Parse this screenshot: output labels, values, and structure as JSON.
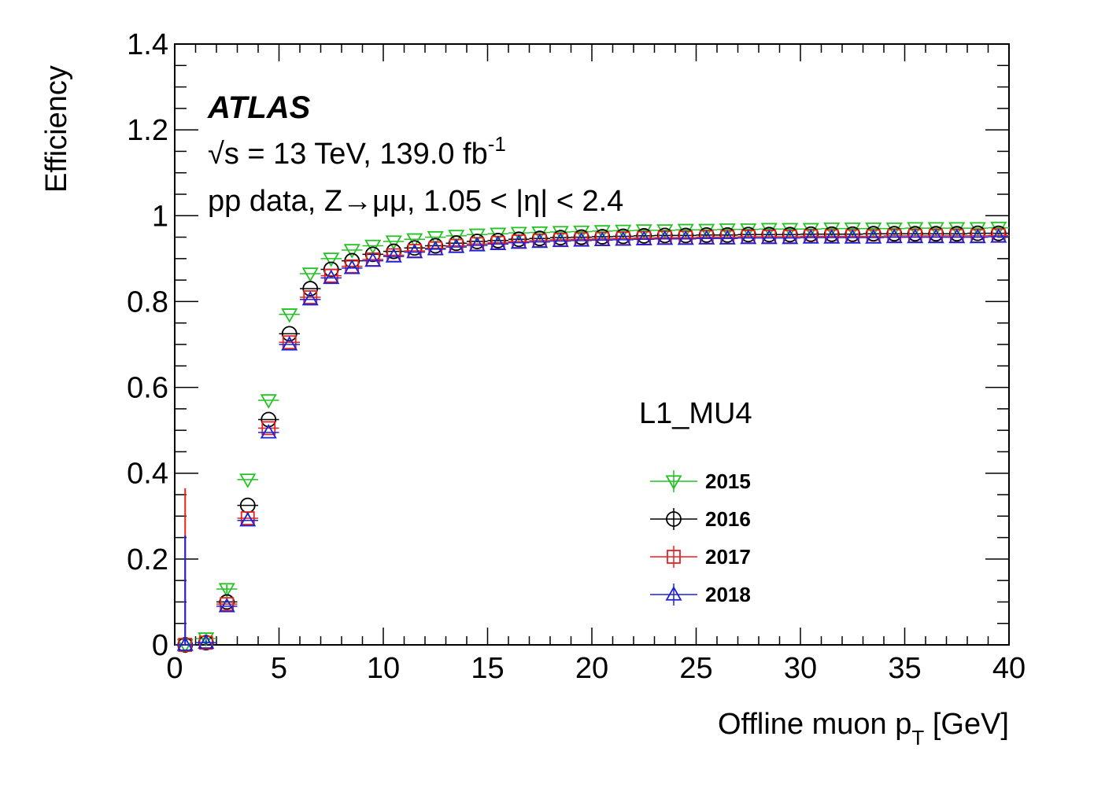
{
  "chart_data": {
    "type": "scatter",
    "xlabel": "Offline muon p",
    "xlabel_sub": "T",
    "xlabel_unit": " [GeV]",
    "ylabel": "Efficiency",
    "xlim": [
      0,
      40
    ],
    "ylim": [
      0,
      1.4
    ],
    "xticks": [
      "0",
      "5",
      "10",
      "15",
      "20",
      "25",
      "30",
      "35",
      "40"
    ],
    "yticks": [
      "0",
      "0.2",
      "0.4",
      "0.6",
      "0.8",
      "1",
      "1.2",
      "1.4"
    ],
    "experiment": "ATLAS",
    "sqrt_symbol": "√s",
    "energy_lumi": " = 13 TeV, 139.0 fb",
    "lumi_exp": "-1",
    "selection": "pp data, Z→μμ, 1.05 < |η| < 2.4",
    "legend_title": "L1_MU4",
    "x": [
      0.5,
      1.5,
      2.5,
      3.5,
      4.5,
      5.5,
      6.5,
      7.5,
      8.5,
      9.5,
      10.5,
      11.5,
      12.5,
      13.5,
      14.5,
      15.5,
      16.5,
      17.5,
      18.5,
      19.5,
      20.5,
      21.5,
      22.5,
      23.5,
      24.5,
      25.5,
      26.5,
      27.5,
      28.5,
      29.5,
      30.5,
      31.5,
      32.5,
      33.5,
      34.5,
      35.5,
      36.5,
      37.5,
      38.5,
      39.5
    ],
    "series": [
      {
        "name": "2015",
        "color": "#22c322",
        "marker": "triangle-down",
        "values": [
          0.0,
          0.015,
          0.13,
          0.385,
          0.57,
          0.77,
          0.865,
          0.9,
          0.92,
          0.93,
          0.94,
          0.945,
          0.95,
          0.953,
          0.956,
          0.958,
          0.96,
          0.961,
          0.962,
          0.963,
          0.964,
          0.965,
          0.966,
          0.966,
          0.967,
          0.967,
          0.968,
          0.968,
          0.969,
          0.969,
          0.969,
          0.97,
          0.97,
          0.97,
          0.97,
          0.971,
          0.971,
          0.971,
          0.971,
          0.972
        ],
        "err_low": [
          0.0,
          0.01,
          0.01,
          0,
          0,
          0,
          0,
          0,
          0,
          0,
          0,
          0,
          0,
          0,
          0,
          0,
          0,
          0,
          0,
          0,
          0,
          0,
          0,
          0,
          0,
          0,
          0,
          0,
          0,
          0,
          0,
          0,
          0,
          0,
          0,
          0,
          0,
          0,
          0,
          0
        ],
        "err_high": [
          0.0,
          0.01,
          0.01,
          0,
          0,
          0,
          0,
          0,
          0,
          0,
          0,
          0,
          0,
          0,
          0,
          0,
          0,
          0,
          0,
          0,
          0,
          0,
          0,
          0,
          0,
          0,
          0,
          0,
          0,
          0,
          0,
          0,
          0,
          0,
          0,
          0,
          0,
          0,
          0,
          0
        ]
      },
      {
        "name": "2016",
        "color": "#000000",
        "marker": "circle",
        "values": [
          0.0,
          0.005,
          0.1,
          0.325,
          0.525,
          0.725,
          0.83,
          0.875,
          0.895,
          0.91,
          0.917,
          0.925,
          0.93,
          0.936,
          0.94,
          0.942,
          0.945,
          0.947,
          0.949,
          0.95,
          0.951,
          0.952,
          0.953,
          0.954,
          0.954,
          0.955,
          0.955,
          0.956,
          0.956,
          0.956,
          0.957,
          0.957,
          0.957,
          0.958,
          0.958,
          0.958,
          0.958,
          0.958,
          0.959,
          0.959
        ],
        "err_low": [
          0,
          0,
          0,
          0,
          0,
          0,
          0,
          0,
          0,
          0,
          0,
          0,
          0,
          0,
          0,
          0,
          0,
          0,
          0,
          0,
          0,
          0,
          0,
          0,
          0,
          0,
          0,
          0,
          0,
          0,
          0,
          0,
          0,
          0,
          0,
          0,
          0,
          0,
          0,
          0
        ],
        "err_high": [
          0,
          0,
          0,
          0,
          0,
          0,
          0,
          0,
          0,
          0,
          0,
          0,
          0,
          0,
          0,
          0,
          0,
          0,
          0,
          0,
          0,
          0,
          0,
          0,
          0,
          0,
          0,
          0,
          0,
          0,
          0,
          0,
          0,
          0,
          0,
          0,
          0,
          0,
          0,
          0
        ]
      },
      {
        "name": "2017",
        "color": "#e8211e",
        "marker": "square",
        "values": [
          0.0,
          0.005,
          0.095,
          0.295,
          0.505,
          0.705,
          0.81,
          0.86,
          0.882,
          0.898,
          0.908,
          0.918,
          0.924,
          0.93,
          0.934,
          0.937,
          0.94,
          0.942,
          0.944,
          0.945,
          0.946,
          0.947,
          0.948,
          0.949,
          0.949,
          0.95,
          0.95,
          0.951,
          0.951,
          0.951,
          0.952,
          0.952,
          0.952,
          0.952,
          0.953,
          0.953,
          0.953,
          0.953,
          0.953,
          0.954
        ],
        "err_low": [
          0.0,
          0.005,
          0,
          0,
          0,
          0,
          0,
          0,
          0,
          0,
          0,
          0,
          0,
          0,
          0,
          0,
          0,
          0,
          0,
          0,
          0,
          0,
          0,
          0,
          0,
          0,
          0,
          0,
          0,
          0,
          0,
          0,
          0,
          0,
          0,
          0,
          0,
          0,
          0,
          0
        ],
        "err_high": [
          0.365,
          0.005,
          0,
          0,
          0,
          0,
          0,
          0,
          0,
          0,
          0,
          0,
          0,
          0,
          0,
          0,
          0,
          0,
          0,
          0,
          0,
          0,
          0,
          0,
          0,
          0,
          0,
          0,
          0,
          0,
          0,
          0,
          0,
          0,
          0,
          0,
          0,
          0,
          0,
          0
        ]
      },
      {
        "name": "2018",
        "color": "#1d22d6",
        "marker": "triangle-up",
        "values": [
          0.0,
          0.005,
          0.09,
          0.29,
          0.495,
          0.7,
          0.805,
          0.855,
          0.878,
          0.895,
          0.905,
          0.915,
          0.922,
          0.927,
          0.931,
          0.934,
          0.937,
          0.939,
          0.941,
          0.942,
          0.943,
          0.944,
          0.945,
          0.946,
          0.946,
          0.947,
          0.947,
          0.948,
          0.948,
          0.948,
          0.949,
          0.949,
          0.949,
          0.949,
          0.95,
          0.95,
          0.95,
          0.95,
          0.95,
          0.951
        ],
        "err_low": [
          0.0,
          0.005,
          0,
          0,
          0,
          0,
          0,
          0,
          0,
          0,
          0,
          0,
          0,
          0,
          0,
          0,
          0,
          0,
          0,
          0,
          0,
          0,
          0,
          0,
          0,
          0,
          0,
          0,
          0,
          0,
          0,
          0,
          0,
          0,
          0,
          0,
          0,
          0,
          0,
          0
        ],
        "err_high": [
          0.255,
          0.005,
          0,
          0,
          0,
          0,
          0,
          0,
          0,
          0,
          0,
          0,
          0,
          0,
          0,
          0,
          0,
          0,
          0,
          0,
          0,
          0,
          0,
          0,
          0,
          0,
          0,
          0,
          0,
          0,
          0,
          0,
          0,
          0,
          0,
          0,
          0,
          0,
          0,
          0
        ]
      }
    ]
  }
}
